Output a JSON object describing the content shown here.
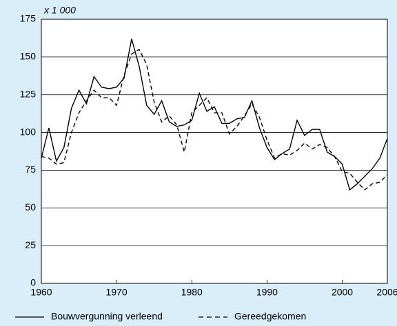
{
  "chart_data": {
    "type": "line",
    "ylabel": "x 1 000",
    "x": [
      1960,
      1961,
      1962,
      1963,
      1964,
      1965,
      1966,
      1967,
      1968,
      1969,
      1970,
      1971,
      1972,
      1973,
      1974,
      1975,
      1976,
      1977,
      1978,
      1979,
      1980,
      1981,
      1982,
      1983,
      1984,
      1985,
      1986,
      1987,
      1988,
      1989,
      1990,
      1991,
      1992,
      1993,
      1994,
      1995,
      1996,
      1997,
      1998,
      1999,
      2000,
      2001,
      2002,
      2003,
      2004,
      2005,
      2006
    ],
    "series": [
      {
        "name": "Bouwvergunning verleend",
        "color": "#000000",
        "linestyle": "solid",
        "values": [
          83,
          103,
          81,
          90,
          116,
          128,
          119,
          137,
          130,
          129,
          130,
          136,
          162,
          144,
          118,
          112,
          121,
          107,
          104,
          105,
          108,
          126,
          114,
          117,
          106,
          106,
          109,
          110,
          121,
          103,
          90,
          82,
          86,
          89,
          108,
          98,
          102,
          102,
          87,
          84,
          79,
          62,
          66,
          71,
          76,
          83,
          96
        ]
      },
      {
        "name": "Gereedgekomen",
        "color": "#000000",
        "linestyle": "dashed",
        "values": [
          84,
          83,
          79,
          80,
          100,
          113,
          121,
          128,
          123,
          123,
          118,
          138,
          152,
          155,
          145,
          120,
          107,
          111,
          105,
          87,
          113,
          118,
          123,
          113,
          113,
          99,
          104,
          111,
          119,
          110,
          95,
          83,
          86,
          85,
          88,
          93,
          89,
          92,
          90,
          84,
          74,
          73,
          67,
          62,
          66,
          67,
          72
        ]
      }
    ],
    "xlim": [
      1960,
      2006
    ],
    "xticks": [
      1960,
      1970,
      1980,
      1990,
      2000,
      2006
    ],
    "ylim": [
      0,
      175
    ],
    "yticks": [
      0,
      25,
      50,
      75,
      100,
      125,
      150,
      175
    ],
    "grid": true
  }
}
